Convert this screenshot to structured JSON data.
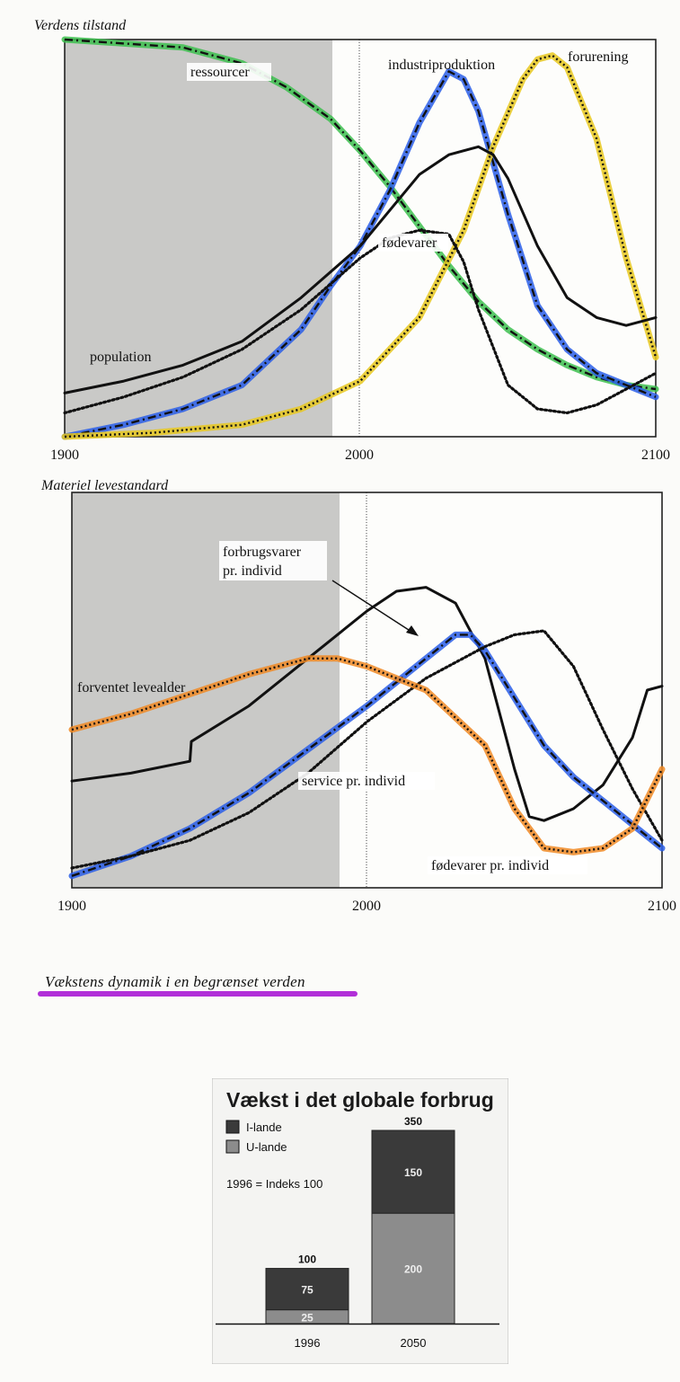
{
  "caption": "Vækstens dynamik i en begrænset verden",
  "chart_data": [
    {
      "type": "line",
      "title": "Verdens tilstand",
      "x_ticks": [
        "1900",
        "2000",
        "2100"
      ],
      "xlim": [
        1900,
        2100
      ],
      "ylim": [
        0,
        1
      ],
      "shaded_region": [
        1900,
        1990
      ],
      "reference_line_x": 2000,
      "series": [
        {
          "name": "ressourcer",
          "color": "#3dbf4f",
          "style": "dashdot",
          "x": [
            1900,
            1920,
            1940,
            1960,
            1975,
            1990,
            2000,
            2010,
            2020,
            2030,
            2040,
            2050,
            2060,
            2070,
            2080,
            2090,
            2100
          ],
          "y": [
            1.0,
            0.99,
            0.98,
            0.94,
            0.88,
            0.8,
            0.72,
            0.63,
            0.53,
            0.43,
            0.34,
            0.27,
            0.22,
            0.18,
            0.15,
            0.13,
            0.12
          ]
        },
        {
          "name": "industriproduktion",
          "color": "#2a5ee8",
          "style": "dashdot",
          "x": [
            1900,
            1920,
            1940,
            1960,
            1980,
            1990,
            2000,
            2010,
            2020,
            2030,
            2035,
            2040,
            2050,
            2060,
            2070,
            2080,
            2090,
            2100
          ],
          "y": [
            0.0,
            0.03,
            0.07,
            0.13,
            0.27,
            0.38,
            0.48,
            0.62,
            0.79,
            0.92,
            0.9,
            0.82,
            0.56,
            0.33,
            0.22,
            0.16,
            0.13,
            0.1
          ]
        },
        {
          "name": "forurening",
          "color": "#e8c81e",
          "style": "dotted",
          "x": [
            1900,
            1930,
            1960,
            1980,
            2000,
            2020,
            2035,
            2045,
            2055,
            2060,
            2065,
            2070,
            2080,
            2090,
            2100
          ],
          "y": [
            0.0,
            0.01,
            0.03,
            0.07,
            0.14,
            0.3,
            0.52,
            0.73,
            0.9,
            0.95,
            0.96,
            0.93,
            0.75,
            0.45,
            0.2
          ]
        },
        {
          "name": "population",
          "color": "#111111",
          "style": "solid",
          "x": [
            1900,
            1920,
            1940,
            1960,
            1980,
            2000,
            2020,
            2030,
            2040,
            2045,
            2050,
            2060,
            2070,
            2080,
            2085,
            2090,
            2100
          ],
          "y": [
            0.11,
            0.14,
            0.18,
            0.24,
            0.35,
            0.48,
            0.66,
            0.71,
            0.73,
            0.71,
            0.65,
            0.48,
            0.35,
            0.3,
            0.29,
            0.28,
            0.3
          ]
        },
        {
          "name": "fødevarer",
          "color": "#111111",
          "style": "dotted",
          "x": [
            1900,
            1920,
            1940,
            1960,
            1980,
            2000,
            2010,
            2020,
            2030,
            2035,
            2040,
            2050,
            2060,
            2070,
            2080,
            2090,
            2100
          ],
          "y": [
            0.06,
            0.1,
            0.15,
            0.22,
            0.32,
            0.45,
            0.5,
            0.52,
            0.51,
            0.44,
            0.32,
            0.13,
            0.07,
            0.06,
            0.08,
            0.12,
            0.16
          ]
        }
      ]
    },
    {
      "type": "line",
      "title": "Materiel levestandard",
      "x_ticks": [
        "1900",
        "2000",
        "2100"
      ],
      "xlim": [
        1900,
        2100
      ],
      "ylim": [
        0,
        1
      ],
      "shaded_region": [
        1900,
        1990
      ],
      "reference_line_x": 2000,
      "annotations": [
        {
          "text": "forbrugsvarer",
          "text2": "pr. individ",
          "arrow": true
        }
      ],
      "series": [
        {
          "name": "forventet levealder",
          "color": "#111111",
          "style": "solid",
          "x": [
            1900,
            1920,
            1940,
            1940.5,
            1960,
            1980,
            2000,
            2010,
            2020,
            2030,
            2040,
            2050,
            2055,
            2060,
            2070,
            2080,
            2090,
            2095,
            2100
          ],
          "y": [
            0.27,
            0.29,
            0.32,
            0.37,
            0.46,
            0.58,
            0.7,
            0.75,
            0.76,
            0.72,
            0.58,
            0.3,
            0.18,
            0.17,
            0.2,
            0.26,
            0.38,
            0.5,
            0.51
          ]
        },
        {
          "name": "forbrugsvarer pr. individ",
          "color": "#2a5ee8",
          "style": "dashdot",
          "x": [
            1900,
            1920,
            1940,
            1960,
            1980,
            2000,
            2020,
            2030,
            2035,
            2040,
            2050,
            2060,
            2070,
            2080,
            2090,
            2100
          ],
          "y": [
            0.03,
            0.08,
            0.15,
            0.24,
            0.35,
            0.46,
            0.58,
            0.64,
            0.64,
            0.6,
            0.48,
            0.36,
            0.28,
            0.22,
            0.16,
            0.1
          ]
        },
        {
          "name": "service pr. individ",
          "color": "#111111",
          "style": "dotted",
          "x": [
            1900,
            1920,
            1940,
            1960,
            1980,
            2000,
            2020,
            2040,
            2050,
            2060,
            2070,
            2080,
            2090,
            2100
          ],
          "y": [
            0.05,
            0.08,
            0.12,
            0.19,
            0.29,
            0.42,
            0.53,
            0.61,
            0.64,
            0.65,
            0.56,
            0.4,
            0.25,
            0.12
          ]
        },
        {
          "name": "fødevarer pr. individ",
          "color": "#f08a24",
          "style": "dotted",
          "x": [
            1900,
            1920,
            1940,
            1960,
            1980,
            1990,
            2000,
            2020,
            2040,
            2050,
            2060,
            2070,
            2080,
            2090,
            2100
          ],
          "y": [
            0.4,
            0.44,
            0.49,
            0.54,
            0.58,
            0.58,
            0.56,
            0.5,
            0.36,
            0.2,
            0.1,
            0.09,
            0.1,
            0.15,
            0.3
          ]
        }
      ]
    },
    {
      "type": "bar",
      "title": "Vækst i det globale forbrug",
      "legend": [
        "I-lande",
        "U-lande"
      ],
      "note": "1996 = Indeks 100",
      "categories": [
        "1996",
        "2050"
      ],
      "series": [
        {
          "name": "I-lande",
          "color": "#3a3a3a",
          "values": [
            75,
            150
          ]
        },
        {
          "name": "U-lande",
          "color": "#8c8c8c",
          "values": [
            25,
            200
          ]
        }
      ],
      "totals": [
        100,
        350
      ],
      "ylim": [
        0,
        350
      ]
    }
  ]
}
